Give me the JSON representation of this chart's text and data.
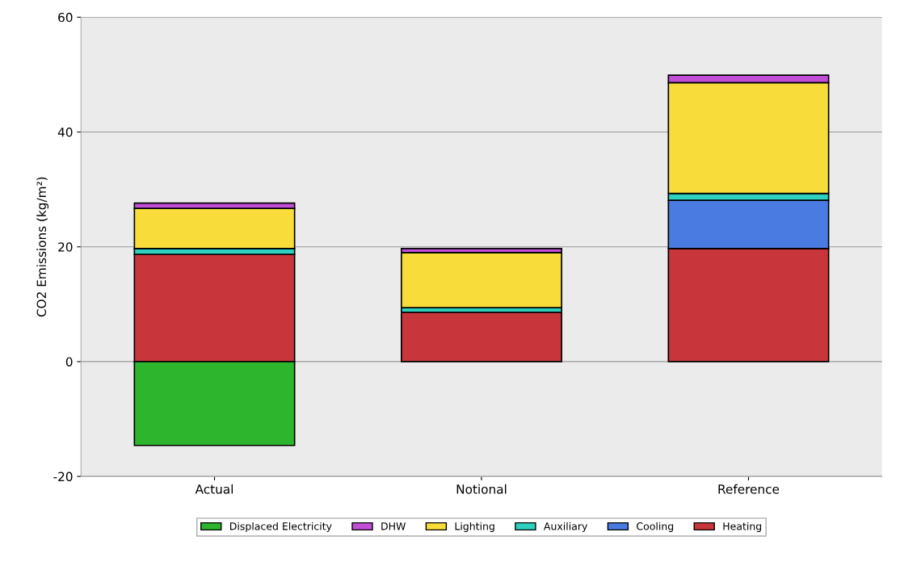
{
  "chart_data": {
    "type": "bar",
    "stacked": true,
    "ylabel": "CO2 Emissions (kg/m²)",
    "categories": [
      "Actual",
      "Notional",
      "Reference"
    ],
    "series": [
      {
        "name": "Heating",
        "color": "#c8363c",
        "values": [
          18.7,
          8.6,
          19.7
        ]
      },
      {
        "name": "Cooling",
        "color": "#4a7be0",
        "values": [
          null,
          null,
          8.4
        ]
      },
      {
        "name": "Auxiliary",
        "color": "#2ed1c0",
        "values": [
          1.0,
          0.8,
          1.2
        ]
      },
      {
        "name": "Lighting",
        "color": "#f7dc3a",
        "values": [
          7.0,
          9.6,
          19.3
        ]
      },
      {
        "name": "DHW",
        "color": "#c04fd6",
        "values": [
          0.9,
          0.7,
          1.3
        ]
      },
      {
        "name": "Displaced Electricity",
        "color": "#2db52d",
        "values": [
          -14.6,
          null,
          null
        ]
      }
    ],
    "ylim": [
      -20,
      60
    ],
    "yticks": [
      -20,
      0,
      20,
      40,
      60
    ],
    "grid": "y",
    "legend": "bottom"
  }
}
